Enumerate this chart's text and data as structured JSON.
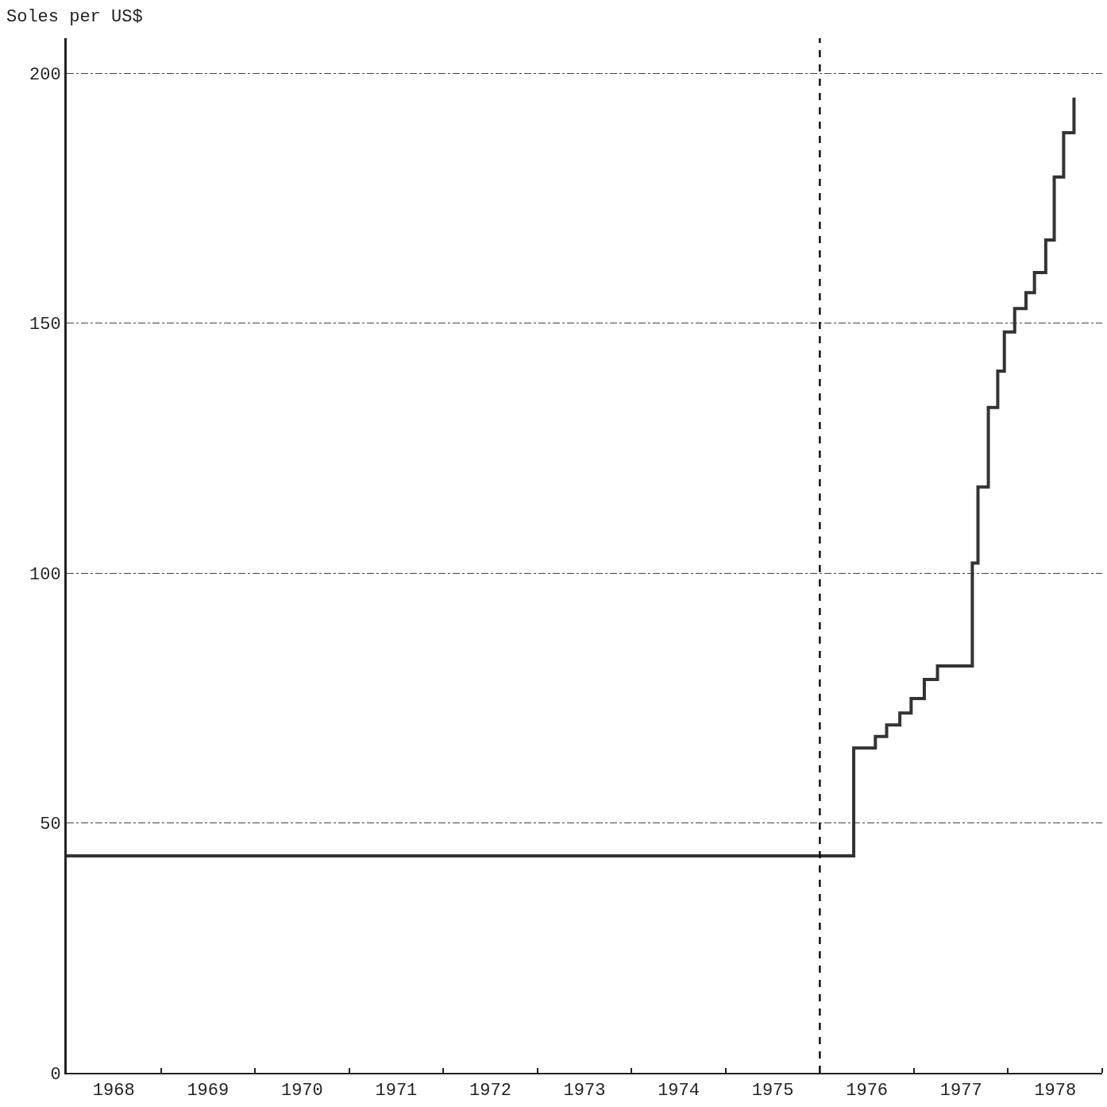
{
  "chart_data": {
    "type": "step",
    "ylabel": "Soles per US$",
    "x": [
      1968.0,
      1976.36,
      1976.59,
      1976.71,
      1976.85,
      1976.97,
      1977.11,
      1977.25,
      1977.62,
      1977.68,
      1977.79,
      1977.89,
      1977.96,
      1978.07,
      1978.19,
      1978.28,
      1978.4,
      1978.49,
      1978.59,
      1978.7
    ],
    "values": [
      43.4,
      65,
      67.3,
      69.6,
      72,
      74.9,
      78.7,
      81.4,
      102,
      117.2,
      133.1,
      140.4,
      148.2,
      152.9,
      156.1,
      160.1,
      166.6,
      179.2,
      188.1,
      195.1
    ],
    "color": "#333333",
    "xlim": [
      1968,
      1979
    ],
    "xticks": [
      {
        "value": 1968.5,
        "label": "1968"
      },
      {
        "value": 1969.5,
        "label": "1969"
      },
      {
        "value": 1970.5,
        "label": "1970"
      },
      {
        "value": 1971.5,
        "label": "1971"
      },
      {
        "value": 1972.5,
        "label": "1972"
      },
      {
        "value": 1973.5,
        "label": "1973"
      },
      {
        "value": 1974.5,
        "label": "1974"
      },
      {
        "value": 1975.5,
        "label": "1975"
      },
      {
        "value": 1976.5,
        "label": "1976"
      },
      {
        "value": 1977.5,
        "label": "1977"
      },
      {
        "value": 1978.5,
        "label": "1978"
      },
      {
        "value": 1969,
        "label": null
      },
      {
        "value": 1970,
        "label": null
      },
      {
        "value": 1971,
        "label": null
      },
      {
        "value": 1972,
        "label": null
      },
      {
        "value": 1973,
        "label": null
      },
      {
        "value": 1974,
        "label": null
      },
      {
        "value": 1975,
        "label": null
      },
      {
        "value": 1976,
        "label": null
      },
      {
        "value": 1977,
        "label": null
      },
      {
        "value": 1978,
        "label": null
      },
      {
        "value": 1979,
        "label": null
      }
    ],
    "ylim": [
      0,
      207
    ],
    "yticks": [
      0,
      50,
      100,
      150,
      200
    ],
    "grid": "y",
    "ref_lines": [
      {
        "axis": "x",
        "value": 1976,
        "color": "#111111",
        "line_style": "dashed"
      }
    ]
  }
}
